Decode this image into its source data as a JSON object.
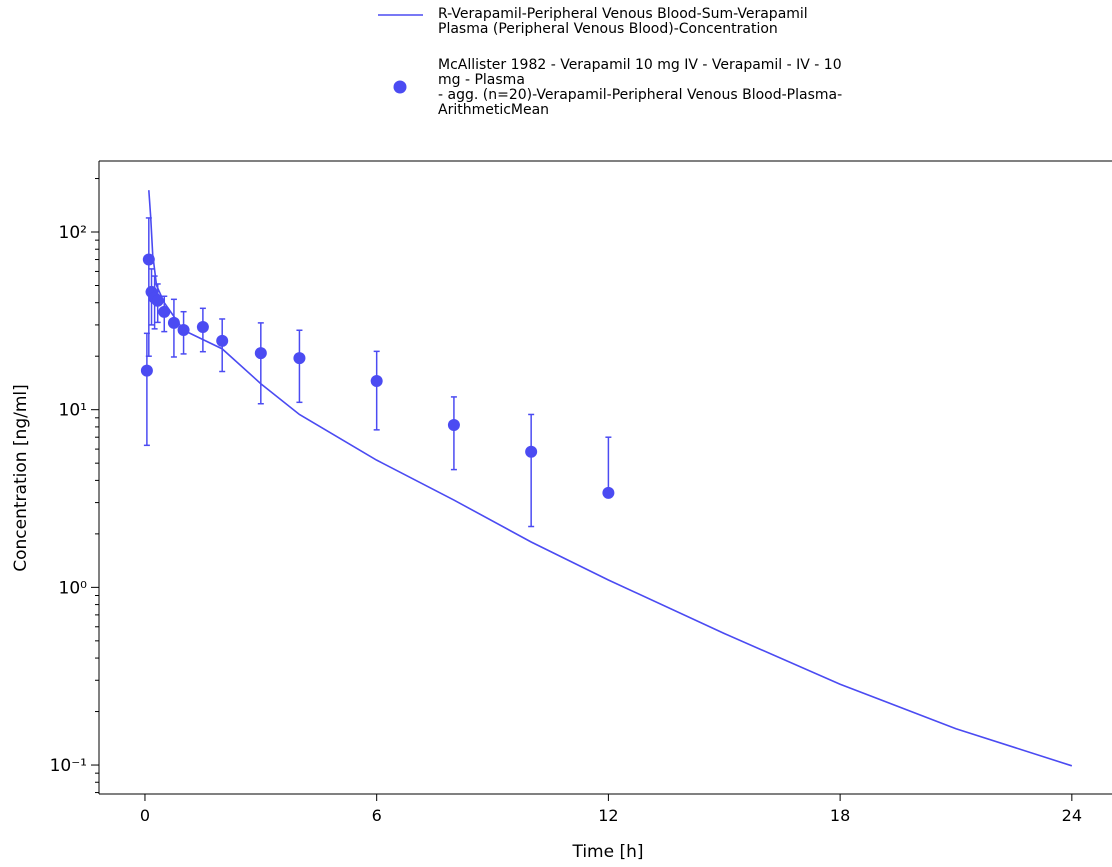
{
  "chart_data": {
    "type": "line_scatter",
    "x_label": "Time [h]",
    "y_label": "Concentration [ng/ml]",
    "xlim": [
      -1.19,
      25.04
    ],
    "xticks": [
      0,
      6,
      12,
      18,
      24
    ],
    "ylim": [
      0.0687,
      251
    ],
    "y_log": true,
    "yticks": [
      {
        "value": 0.1,
        "label": "10⁻¹"
      },
      {
        "value": 1,
        "label": "10⁰"
      },
      {
        "value": 10,
        "label": "10¹"
      },
      {
        "value": 100,
        "label": "10²"
      }
    ],
    "series": [
      {
        "name": "R-Verapamil-Peripheral Venous Blood-Sum-Verapamil Plasma (Peripheral Venous Blood)-Concentration",
        "kind": "line",
        "color": "#4b4bf2",
        "x": [
          0.1,
          0.15,
          0.2,
          0.3,
          0.5,
          1,
          2,
          3,
          4,
          6,
          8,
          10,
          12,
          15,
          18,
          21,
          24
        ],
        "values": [
          172,
          120,
          75,
          50,
          40,
          28,
          22,
          14,
          9.4,
          5.2,
          3.1,
          1.8,
          1.1,
          0.55,
          0.285,
          0.16,
          0.099
        ]
      },
      {
        "name": "McAllister 1982 - Verapamil 10 mg IV - Verapamil - IV - 10 mg - Plasma\n- agg. (n=20)-Verapamil-Peripheral Venous Blood-Plasma-ArithmeticMean",
        "kind": "scatter",
        "color": "#4b4bf2",
        "x": [
          0.05,
          0.1,
          0.17,
          0.25,
          0.33,
          0.5,
          0.75,
          1,
          1.5,
          2,
          3,
          4,
          6,
          8,
          10,
          12
        ],
        "values": [
          16.6,
          70,
          46,
          42.5,
          41,
          35.5,
          30.8,
          28.1,
          29.2,
          24.4,
          20.8,
          19.5,
          14.5,
          8.2,
          5.8,
          3.4
        ],
        "errors": [
          10.3,
          50,
          16,
          14,
          10,
          8,
          11,
          7.5,
          8,
          8,
          10,
          8.5,
          6.8,
          3.6,
          3.6,
          3.6
        ]
      }
    ]
  }
}
